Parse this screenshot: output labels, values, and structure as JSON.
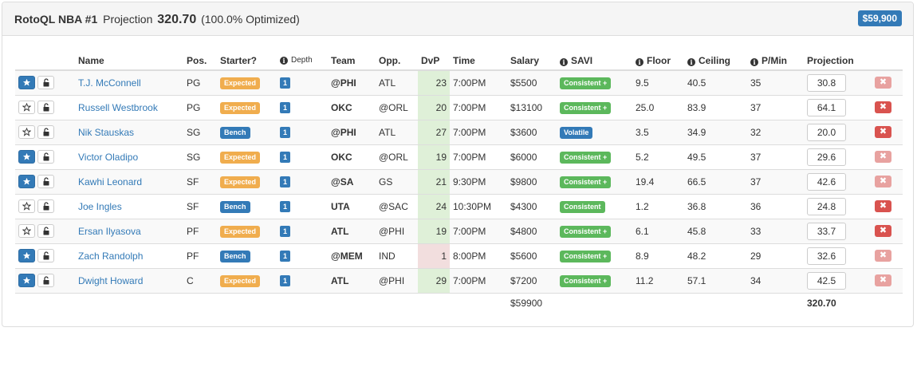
{
  "header": {
    "brand": "RotoQL NBA #1",
    "projection_label": "Projection",
    "projection_value": "320.70",
    "optimized": "(100.0% Optimized)",
    "salary_badge": "$59,900"
  },
  "columns": {
    "name": "Name",
    "pos": "Pos.",
    "starter": "Starter?",
    "depth": "Depth",
    "team": "Team",
    "opp": "Opp.",
    "dvp": "DvP",
    "time": "Time",
    "salary": "Salary",
    "savi": "SAVI",
    "floor": "Floor",
    "ceiling": "Ceiling",
    "pmin": "P/Min",
    "projection": "Projection"
  },
  "players": [
    {
      "starred": true,
      "name": "T.J. McConnell",
      "pos": "PG",
      "starter": "Expected",
      "starter_type": "expected",
      "depth": "1",
      "team": "@PHI",
      "opp": "ATL",
      "dvp": "23",
      "dvp_type": "good",
      "time": "7:00PM",
      "salary": "$5500",
      "savi": "Consistent +",
      "savi_type": "consistent",
      "floor": "9.5",
      "ceiling": "40.5",
      "pmin": "35",
      "projection": "30.8",
      "remove_active": false
    },
    {
      "starred": false,
      "name": "Russell Westbrook",
      "pos": "PG",
      "starter": "Expected",
      "starter_type": "expected",
      "depth": "1",
      "team": "OKC",
      "opp": "@ORL",
      "dvp": "20",
      "dvp_type": "good",
      "time": "7:00PM",
      "salary": "$13100",
      "savi": "Consistent +",
      "savi_type": "consistent",
      "floor": "25.0",
      "ceiling": "83.9",
      "pmin": "37",
      "projection": "64.1",
      "remove_active": true
    },
    {
      "starred": false,
      "name": "Nik Stauskas",
      "pos": "SG",
      "starter": "Bench",
      "starter_type": "bench",
      "depth": "1",
      "team": "@PHI",
      "opp": "ATL",
      "dvp": "27",
      "dvp_type": "good",
      "time": "7:00PM",
      "salary": "$3600",
      "savi": "Volatile",
      "savi_type": "volatile",
      "floor": "3.5",
      "ceiling": "34.9",
      "pmin": "32",
      "projection": "20.0",
      "remove_active": true
    },
    {
      "starred": true,
      "name": "Victor Oladipo",
      "pos": "SG",
      "starter": "Expected",
      "starter_type": "expected",
      "depth": "1",
      "team": "OKC",
      "opp": "@ORL",
      "dvp": "19",
      "dvp_type": "good",
      "time": "7:00PM",
      "salary": "$6000",
      "savi": "Consistent +",
      "savi_type": "consistent",
      "floor": "5.2",
      "ceiling": "49.5",
      "pmin": "37",
      "projection": "29.6",
      "remove_active": false
    },
    {
      "starred": true,
      "name": "Kawhi Leonard",
      "pos": "SF",
      "starter": "Expected",
      "starter_type": "expected",
      "depth": "1",
      "team": "@SA",
      "opp": "GS",
      "dvp": "21",
      "dvp_type": "good",
      "time": "9:30PM",
      "salary": "$9800",
      "savi": "Consistent +",
      "savi_type": "consistent",
      "floor": "19.4",
      "ceiling": "66.5",
      "pmin": "37",
      "projection": "42.6",
      "remove_active": false
    },
    {
      "starred": false,
      "name": "Joe Ingles",
      "pos": "SF",
      "starter": "Bench",
      "starter_type": "bench",
      "depth": "1",
      "team": "UTA",
      "opp": "@SAC",
      "dvp": "24",
      "dvp_type": "good",
      "time": "10:30PM",
      "salary": "$4300",
      "savi": "Consistent",
      "savi_type": "consistent",
      "floor": "1.2",
      "ceiling": "36.8",
      "pmin": "36",
      "projection": "24.8",
      "remove_active": true
    },
    {
      "starred": false,
      "name": "Ersan Ilyasova",
      "pos": "PF",
      "starter": "Expected",
      "starter_type": "expected",
      "depth": "1",
      "team": "ATL",
      "opp": "@PHI",
      "dvp": "19",
      "dvp_type": "good",
      "time": "7:00PM",
      "salary": "$4800",
      "savi": "Consistent +",
      "savi_type": "consistent",
      "floor": "6.1",
      "ceiling": "45.8",
      "pmin": "33",
      "projection": "33.7",
      "remove_active": true
    },
    {
      "starred": true,
      "name": "Zach Randolph",
      "pos": "PF",
      "starter": "Bench",
      "starter_type": "bench",
      "depth": "1",
      "team": "@MEM",
      "opp": "IND",
      "dvp": "1",
      "dvp_type": "bad",
      "time": "8:00PM",
      "salary": "$5600",
      "savi": "Consistent +",
      "savi_type": "consistent",
      "floor": "8.9",
      "ceiling": "48.2",
      "pmin": "29",
      "projection": "32.6",
      "remove_active": false
    },
    {
      "starred": true,
      "name": "Dwight Howard",
      "pos": "C",
      "starter": "Expected",
      "starter_type": "expected",
      "depth": "1",
      "team": "ATL",
      "opp": "@PHI",
      "dvp": "29",
      "dvp_type": "good",
      "time": "7:00PM",
      "salary": "$7200",
      "savi": "Consistent +",
      "savi_type": "consistent",
      "floor": "11.2",
      "ceiling": "57.1",
      "pmin": "34",
      "projection": "42.5",
      "remove_active": false
    }
  ],
  "totals": {
    "salary": "$59900",
    "projection": "320.70"
  },
  "colors": {
    "primary": "#337ab7",
    "warning": "#f0ad4e",
    "success": "#5cb85c",
    "danger": "#d9534f",
    "dvp_good": "#dff0d8",
    "dvp_bad": "#f2dede"
  },
  "icons": {
    "star": "star-icon",
    "lock": "lock-icon",
    "remove": "remove-icon",
    "info": "info-icon"
  }
}
